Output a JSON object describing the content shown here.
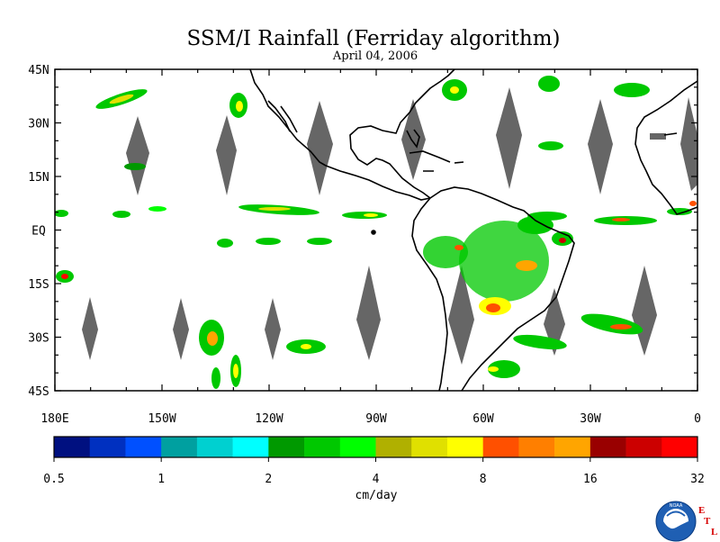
{
  "title": "SSM/I Rainfall (Ferriday algorithm)",
  "date": "April 04, 2006",
  "map": {
    "lat_labels": [
      "45N",
      "30N",
      "15N",
      "EQ",
      "15S",
      "30S",
      "45S"
    ],
    "lon_labels": [
      "180E",
      "150W",
      "120W",
      "90W",
      "60W",
      "30W",
      "0"
    ],
    "lat_values": [
      45,
      30,
      15,
      0,
      -15,
      -30,
      -45
    ],
    "lon_values": [
      -180,
      -150,
      -120,
      -90,
      -60,
      -30,
      0
    ],
    "extent": {
      "lon_min": -180,
      "lon_max": 0,
      "lat_min": -45,
      "lat_max": 45
    },
    "no_data_color": "#666666",
    "coast_color": "#000000"
  },
  "colorbar": {
    "unit": "cm/day",
    "tick_labels": [
      "0.5",
      "1",
      "2",
      "4",
      "8",
      "16",
      "32"
    ],
    "colors": [
      "#001080",
      "#0030c0",
      "#0050ff",
      "#00a0a0",
      "#00d0d0",
      "#00ffff",
      "#009900",
      "#00c800",
      "#00ff00",
      "#b0b000",
      "#e0e000",
      "#ffff00",
      "#ff5000",
      "#ff7f00",
      "#ffa500",
      "#990000",
      "#cc0000",
      "#ff0000"
    ]
  },
  "logo": {
    "text": "NOAA",
    "etl": [
      "E",
      "T",
      "L"
    ]
  }
}
